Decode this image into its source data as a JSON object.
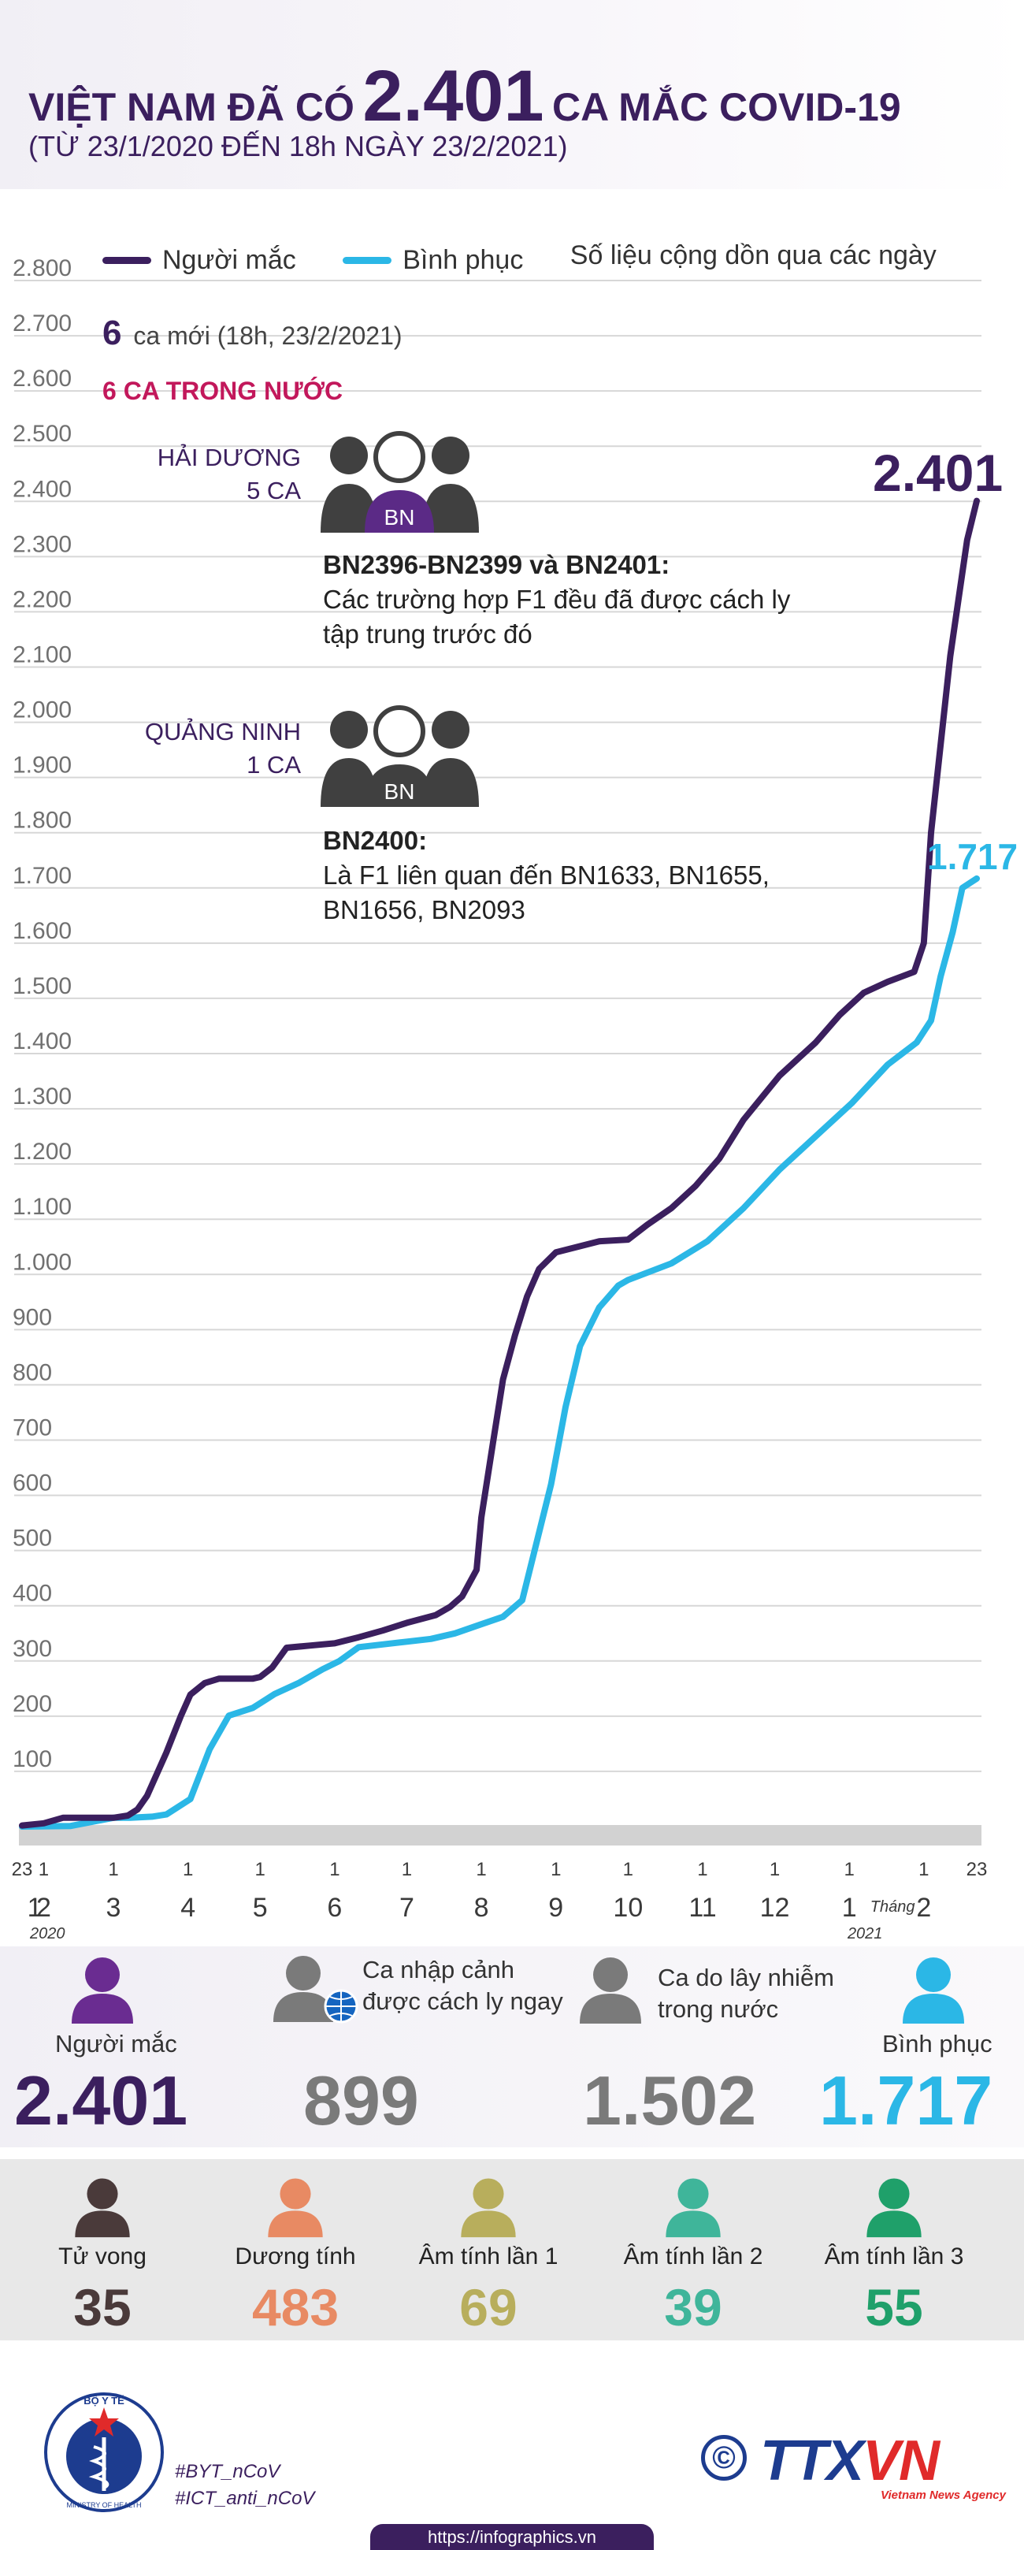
{
  "header": {
    "title_prefix": "VIỆT NAM ĐÃ CÓ",
    "title_number": "2.401",
    "title_suffix": "CA MẮC COVID-19",
    "subtitle": "(TỪ 23/1/2020 ĐẾN 18h NGÀY 23/2/2021)"
  },
  "legend": {
    "cases": "Người mắc",
    "recovered": "Bình phục",
    "note": "Số liệu cộng dồn qua các ngày"
  },
  "annotations": {
    "new_count": "6",
    "new_text": "ca mới (18h, 23/2/2021)",
    "domestic": "6 CA TRONG NƯỚC",
    "hd_name": "HẢI DƯƠNG",
    "hd_count": "5 CA",
    "hd_cases": "BN2396-BN2399 và BN2401:",
    "hd_desc1": "Các trường hợp F1 đều đã được cách ly",
    "hd_desc2": "tập trung trước đó",
    "qn_name": "QUẢNG NINH",
    "qn_count": "1 CA",
    "qn_cases": "BN2400:",
    "qn_desc1": "Là F1 liên quan đến BN1633, BN1655,",
    "qn_desc2": "BN1656, BN2093",
    "badge": "BN",
    "end_total": "2.401",
    "end_recovered": "1.717"
  },
  "chart_data": {
    "type": "line",
    "title": "Số liệu cộng dồn qua các ngày",
    "ylim": [
      0,
      2800
    ],
    "y_ticks": [
      100,
      200,
      300,
      400,
      500,
      600,
      700,
      800,
      900,
      1000,
      1100,
      1200,
      1300,
      1400,
      1500,
      1600,
      1700,
      1800,
      1900,
      2000,
      2100,
      2200,
      2300,
      2400,
      2500,
      2600,
      2700,
      2800
    ],
    "y_tick_labels": [
      "100",
      "200",
      "300",
      "400",
      "500",
      "600",
      "700",
      "800",
      "900",
      "1.000",
      "1.100",
      "1.200",
      "1.300",
      "1.400",
      "1.500",
      "1.600",
      "1.700",
      "1.800",
      "1.900",
      "2.000",
      "2.100",
      "2.200",
      "2.300",
      "2.400",
      "2.500",
      "2.600",
      "2.700",
      "2.800"
    ],
    "x_domain_days": [
      0,
      397
    ],
    "x_day_ticks": [
      {
        "day": 0,
        "label": "23"
      },
      {
        "day": 9,
        "label": "1"
      },
      {
        "day": 38,
        "label": "1"
      },
      {
        "day": 69,
        "label": "1"
      },
      {
        "day": 99,
        "label": "1"
      },
      {
        "day": 130,
        "label": "1"
      },
      {
        "day": 160,
        "label": "1"
      },
      {
        "day": 191,
        "label": "1"
      },
      {
        "day": 222,
        "label": "1"
      },
      {
        "day": 252,
        "label": "1"
      },
      {
        "day": 283,
        "label": "1"
      },
      {
        "day": 313,
        "label": "1"
      },
      {
        "day": 344,
        "label": "1"
      },
      {
        "day": 375,
        "label": "1"
      },
      {
        "day": 397,
        "label": "23"
      }
    ],
    "x_month_labels": [
      {
        "day": 2,
        "label": "1"
      },
      {
        "day": 9,
        "label": "2"
      },
      {
        "day": 38,
        "label": "3"
      },
      {
        "day": 69,
        "label": "4"
      },
      {
        "day": 99,
        "label": "5"
      },
      {
        "day": 130,
        "label": "6"
      },
      {
        "day": 160,
        "label": "7"
      },
      {
        "day": 191,
        "label": "8"
      },
      {
        "day": 222,
        "label": "9"
      },
      {
        "day": 252,
        "label": "10"
      },
      {
        "day": 283,
        "label": "11"
      },
      {
        "day": 313,
        "label": "12"
      },
      {
        "day": 344,
        "label": "1"
      },
      {
        "day": 375,
        "label": "2"
      }
    ],
    "x_year_labels": [
      {
        "day": 4,
        "label": "2020"
      },
      {
        "day": 344,
        "label": "2021"
      }
    ],
    "month_word": {
      "day": 362,
      "label": "Tháng"
    },
    "series": [
      {
        "name": "Người mắc",
        "color": "#3b1f5e",
        "points": [
          [
            0,
            2
          ],
          [
            9,
            6
          ],
          [
            17,
            16
          ],
          [
            38,
            16
          ],
          [
            44,
            20
          ],
          [
            48,
            31
          ],
          [
            52,
            56
          ],
          [
            60,
            134
          ],
          [
            66,
            200
          ],
          [
            70,
            239
          ],
          [
            76,
            260
          ],
          [
            82,
            268
          ],
          [
            96,
            268
          ],
          [
            99,
            271
          ],
          [
            104,
            288
          ],
          [
            106,
            300
          ],
          [
            110,
            324
          ],
          [
            120,
            328
          ],
          [
            130,
            332
          ],
          [
            140,
            343
          ],
          [
            150,
            355
          ],
          [
            160,
            369
          ],
          [
            172,
            383
          ],
          [
            178,
            398
          ],
          [
            183,
            417
          ],
          [
            189,
            465
          ],
          [
            191,
            560
          ],
          [
            196,
            700
          ],
          [
            200,
            810
          ],
          [
            205,
            890
          ],
          [
            210,
            960
          ],
          [
            215,
            1010
          ],
          [
            222,
            1040
          ],
          [
            240,
            1060
          ],
          [
            252,
            1063
          ],
          [
            260,
            1090
          ],
          [
            270,
            1120
          ],
          [
            280,
            1160
          ],
          [
            290,
            1210
          ],
          [
            300,
            1280
          ],
          [
            315,
            1360
          ],
          [
            330,
            1420
          ],
          [
            340,
            1470
          ],
          [
            350,
            1510
          ],
          [
            360,
            1530
          ],
          [
            371,
            1548
          ],
          [
            375,
            1600
          ],
          [
            378,
            1800
          ],
          [
            382,
            1960
          ],
          [
            386,
            2120
          ],
          [
            390,
            2240
          ],
          [
            393,
            2330
          ],
          [
            397,
            2401
          ]
        ]
      },
      {
        "name": "Bình phục",
        "color": "#2bb7e6",
        "points": [
          [
            0,
            0
          ],
          [
            20,
            1
          ],
          [
            38,
            16
          ],
          [
            45,
            16
          ],
          [
            54,
            18
          ],
          [
            60,
            22
          ],
          [
            70,
            50
          ],
          [
            78,
            140
          ],
          [
            86,
            201
          ],
          [
            96,
            215
          ],
          [
            105,
            240
          ],
          [
            115,
            260
          ],
          [
            125,
            285
          ],
          [
            132,
            300
          ],
          [
            140,
            325
          ],
          [
            160,
            335
          ],
          [
            170,
            340
          ],
          [
            180,
            350
          ],
          [
            190,
            365
          ],
          [
            200,
            380
          ],
          [
            208,
            410
          ],
          [
            212,
            480
          ],
          [
            220,
            620
          ],
          [
            226,
            760
          ],
          [
            232,
            870
          ],
          [
            240,
            940
          ],
          [
            248,
            980
          ],
          [
            252,
            990
          ],
          [
            270,
            1020
          ],
          [
            285,
            1060
          ],
          [
            300,
            1120
          ],
          [
            315,
            1190
          ],
          [
            330,
            1250
          ],
          [
            345,
            1310
          ],
          [
            360,
            1380
          ],
          [
            372,
            1420
          ],
          [
            378,
            1460
          ],
          [
            382,
            1540
          ],
          [
            387,
            1620
          ],
          [
            391,
            1700
          ],
          [
            397,
            1717
          ]
        ]
      }
    ]
  },
  "stats": {
    "cases_label": "Người mắc",
    "cases_value": "2.401",
    "imported_label_1": "Ca nhập cảnh",
    "imported_label_2": "được cách ly ngay",
    "imported_value": "899",
    "domestic_label_1": "Ca do lây nhiễm",
    "domestic_label_2": "trong nước",
    "domestic_value": "1.502",
    "recovered_label": "Bình phục",
    "recovered_value": "1.717"
  },
  "outcomes": [
    {
      "label": "Tử vong",
      "value": "35",
      "color": "#4a3a3a"
    },
    {
      "label": "Dương tính",
      "value": "483",
      "color": "#e88a63"
    },
    {
      "label": "Âm tính lần 1",
      "value": "69",
      "color": "#b8ae5c"
    },
    {
      "label": "Âm tính lần 2",
      "value": "39",
      "color": "#3fb59a"
    },
    {
      "label": "Âm tính lần 3",
      "value": "55",
      "color": "#1fa06a"
    }
  ],
  "footer": {
    "logo_text": "BỘ Y TẾ",
    "logo_subtext": "MINISTRY OF HEALTH",
    "hashtag1": "#BYT_nCoV",
    "hashtag2": "#ICT_anti_nCoV",
    "copyright": "©",
    "ttxvn_a": "TTX",
    "ttxvn_b": "VN",
    "agency": "Vietnam News Agency",
    "url": "https://infographics.vn"
  }
}
